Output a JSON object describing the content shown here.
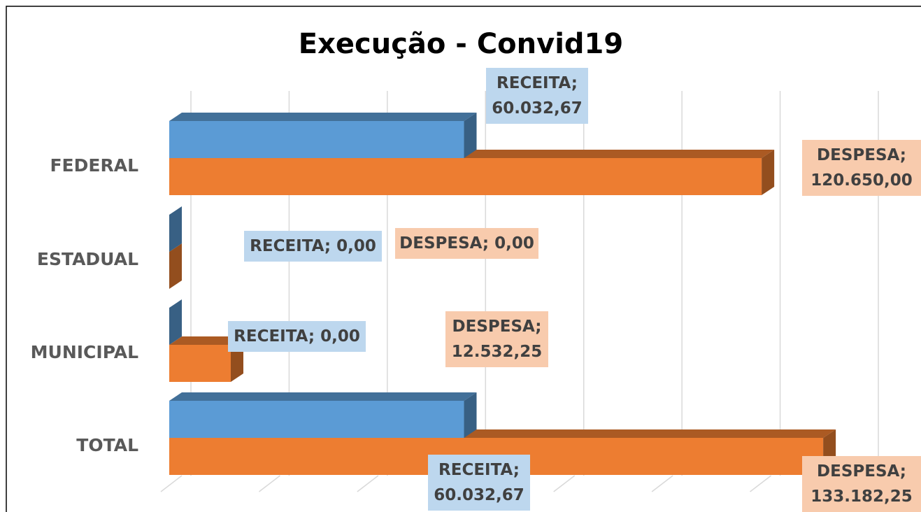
{
  "chart_data": {
    "type": "bar3d-horizontal",
    "title": "Execução - Convid19",
    "categories": [
      "FEDERAL",
      "ESTADUAL",
      "MUNICIPAL",
      "TOTAL"
    ],
    "series": [
      {
        "name": "RECEITA",
        "color": "#5b9bd5",
        "values": [
          60032.67,
          0,
          0,
          60032.67
        ],
        "value_labels": [
          "RECEITA; 60.032,67",
          "RECEITA; 0,00",
          "RECEITA; 0,00",
          "RECEITA; 60.032,67"
        ]
      },
      {
        "name": "DESPESA",
        "color": "#ed7d31",
        "values": [
          120650.0,
          0,
          12532.25,
          133182.25
        ],
        "value_labels": [
          "DESPESA; 120.650,00",
          "DESPESA; 0,00",
          "DESPESA; 12.532,25",
          "DESPESA; 133.182,25"
        ]
      }
    ],
    "xlim": [
      0,
      140000
    ],
    "xticks": [
      0,
      20000,
      40000,
      60000,
      80000,
      100000,
      120000,
      140000
    ],
    "grid": true
  }
}
